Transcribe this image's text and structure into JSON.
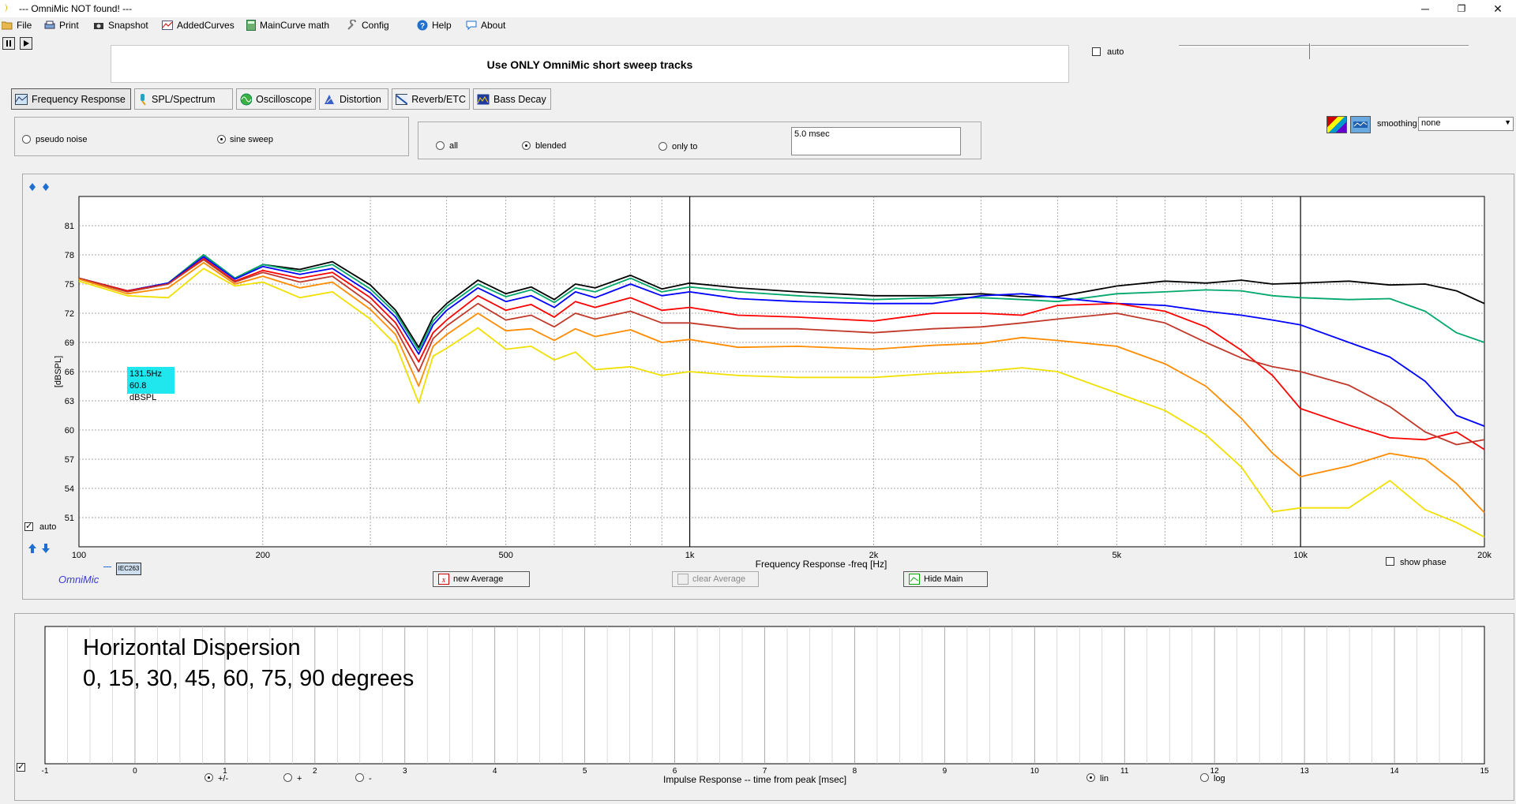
{
  "window": {
    "title": "--- OmniMic NOT found! ---",
    "min": "─",
    "max": "❐",
    "close": "✕"
  },
  "menu": {
    "file": "File",
    "print": "Print",
    "snapshot": "Snapshot",
    "added_curves": "AddedCurves",
    "maincurve_math": "MainCurve math",
    "config": "Config",
    "help": "Help",
    "about": "About"
  },
  "info_message": "Use ONLY OmniMic short sweep tracks",
  "auto_label": "auto",
  "tabs": [
    "Frequency Response",
    "SPL/Spectrum",
    "Oscilloscope",
    "Distortion",
    "Reverb/ETC",
    "Bass Decay"
  ],
  "signal": {
    "pseudo_noise": "pseudo noise",
    "sine_sweep": "sine sweep",
    "selected": "sine sweep"
  },
  "gating": {
    "all": "all",
    "blended": "blended",
    "only_to": "only to",
    "selected": "blended",
    "msec_value": "5.0 msec"
  },
  "smoothing": {
    "label": "smoothing",
    "value": "none"
  },
  "plot": {
    "y_label": "[dBSPL]",
    "x_label": "Frequency Response -freq [Hz]",
    "auto_label": "auto",
    "cursor_freq": "131.5Hz",
    "cursor_level": "60.8 dBSPL",
    "brand": "OmniMic",
    "iec_tag": "IEC263",
    "show_phase": "show phase",
    "new_average": "new Average",
    "clear_average": "clear Average",
    "hide_main": "Hide Main"
  },
  "chart_data": {
    "type": "line",
    "x_scale": "log",
    "xlim": [
      100,
      20000
    ],
    "ylim": [
      48,
      84
    ],
    "y_ticks": [
      51,
      54,
      57,
      60,
      63,
      66,
      69,
      72,
      75,
      78,
      81
    ],
    "x_tick_labels": [
      {
        "value": 100,
        "label": "100"
      },
      {
        "value": 200,
        "label": "200"
      },
      {
        "value": 500,
        "label": "500"
      },
      {
        "value": 1000,
        "label": "1k"
      },
      {
        "value": 2000,
        "label": "2k"
      },
      {
        "value": 5000,
        "label": "5k"
      },
      {
        "value": 10000,
        "label": "10k"
      },
      {
        "value": 20000,
        "label": "20k"
      }
    ],
    "x_label": "Frequency Response -freq [Hz]",
    "y_label": "[dBSPL]",
    "markers": [
      1000,
      10000
    ],
    "grid": true,
    "x": [
      100,
      120,
      140,
      160,
      180,
      200,
      230,
      260,
      300,
      330,
      360,
      380,
      400,
      450,
      500,
      550,
      600,
      650,
      700,
      800,
      900,
      1000,
      1200,
      1500,
      2000,
      2500,
      3000,
      3500,
      4000,
      5000,
      6000,
      7000,
      8000,
      9000,
      10000,
      12000,
      14000,
      16000,
      18000,
      20000
    ],
    "series": [
      {
        "color": "#000000",
        "values": [
          75.6,
          74.3,
          75.1,
          78.0,
          75.6,
          77.0,
          76.5,
          77.3,
          74.9,
          72.3,
          68.5,
          71.6,
          73.0,
          75.4,
          74.0,
          74.7,
          73.4,
          75.0,
          74.6,
          75.9,
          74.5,
          75.1,
          74.6,
          74.2,
          73.8,
          73.8,
          74.0,
          73.7,
          73.7,
          74.8,
          75.3,
          75.1,
          75.4,
          75.0,
          75.1,
          75.3,
          74.9,
          75.0,
          74.3,
          73.0
        ]
      },
      {
        "color": "#00a86b",
        "values": [
          75.6,
          74.3,
          75.1,
          78.0,
          75.6,
          77.0,
          76.3,
          77.0,
          74.5,
          72.0,
          68.2,
          71.2,
          72.7,
          75.0,
          73.7,
          74.4,
          73.1,
          74.6,
          74.2,
          75.6,
          74.2,
          74.7,
          74.2,
          73.8,
          73.4,
          73.6,
          73.6,
          73.4,
          73.2,
          74.0,
          74.2,
          74.4,
          74.3,
          73.8,
          73.6,
          73.4,
          73.5,
          72.2,
          70.0,
          69.0
        ]
      },
      {
        "color": "#0000ff",
        "values": [
          75.6,
          74.3,
          75.1,
          77.8,
          75.5,
          76.8,
          76.0,
          76.6,
          74.1,
          71.6,
          67.8,
          70.8,
          72.3,
          74.6,
          73.2,
          73.8,
          72.6,
          74.2,
          73.6,
          75.0,
          73.8,
          74.2,
          73.5,
          73.2,
          73.0,
          73.0,
          73.8,
          74.0,
          73.6,
          73.0,
          72.8,
          72.2,
          71.8,
          71.3,
          70.8,
          69.0,
          67.5,
          65.0,
          61.5,
          60.4
        ]
      },
      {
        "color": "#ff0000",
        "values": [
          75.6,
          74.3,
          75.0,
          77.6,
          75.3,
          76.4,
          75.6,
          76.2,
          73.6,
          71.0,
          67.0,
          70.0,
          71.3,
          73.8,
          72.3,
          72.9,
          71.6,
          73.2,
          72.6,
          73.6,
          72.3,
          72.6,
          71.8,
          71.6,
          71.2,
          72.0,
          72.0,
          71.8,
          72.8,
          73.0,
          72.2,
          70.6,
          68.2,
          65.6,
          62.2,
          60.5,
          59.2,
          59.0,
          59.8,
          58.0
        ]
      },
      {
        "color": "#c0392b",
        "values": [
          75.6,
          74.2,
          75.0,
          77.5,
          75.2,
          76.2,
          75.2,
          75.8,
          73.0,
          70.4,
          66.0,
          69.4,
          70.7,
          73.0,
          71.3,
          71.8,
          70.6,
          72.0,
          71.4,
          72.2,
          71.0,
          71.0,
          70.4,
          70.4,
          70.0,
          70.4,
          70.6,
          71.0,
          71.4,
          72.0,
          71.0,
          69.0,
          67.4,
          66.5,
          66.0,
          64.6,
          62.4,
          59.8,
          58.5,
          59.0
        ]
      },
      {
        "color": "#ff8c00",
        "values": [
          75.5,
          74.0,
          74.6,
          77.2,
          75.0,
          75.8,
          74.6,
          75.2,
          72.4,
          69.8,
          64.5,
          68.6,
          69.8,
          72.0,
          70.2,
          70.4,
          69.2,
          70.4,
          69.6,
          70.3,
          69.0,
          69.3,
          68.5,
          68.6,
          68.3,
          68.7,
          68.9,
          69.5,
          69.2,
          68.6,
          66.8,
          64.5,
          61.2,
          57.6,
          55.2,
          56.3,
          57.6,
          57.0,
          54.5,
          51.5
        ]
      },
      {
        "color": "#f0e000",
        "values": [
          75.3,
          73.8,
          73.6,
          76.6,
          74.8,
          75.2,
          73.6,
          74.2,
          71.4,
          68.8,
          62.8,
          67.6,
          68.4,
          70.5,
          68.3,
          68.6,
          67.2,
          68.0,
          66.2,
          66.5,
          65.6,
          66.0,
          65.6,
          65.4,
          65.4,
          65.8,
          66.0,
          66.4,
          66.0,
          63.8,
          62.0,
          59.5,
          56.2,
          51.6,
          52.0,
          52.0,
          54.8,
          51.8,
          50.5,
          49.0
        ]
      }
    ],
    "cursor_readout": "131.5Hz 60.8 dBSPL",
    "annotation": "Horizontal Dispersion 0, 15, 30, 45, 60, 75, 90 degrees"
  },
  "impulse": {
    "x_label": "Impulse Response  -- time from peak [msec]",
    "ticks": [
      "-1",
      "0",
      "1",
      "2",
      "3",
      "4",
      "5",
      "6",
      "7",
      "8",
      "9",
      "10",
      "11",
      "12",
      "13",
      "14",
      "15"
    ],
    "annotation_line1": "Horizontal Dispersion",
    "annotation_line2": "0, 15, 30, 45, 60, 75, 90 degrees",
    "polarity": {
      "plus_minus": "+/-",
      "plus": "+",
      "minus": "-",
      "selected": "+/-"
    },
    "scale": {
      "lin": "lin",
      "log": "log",
      "selected": "lin"
    }
  }
}
